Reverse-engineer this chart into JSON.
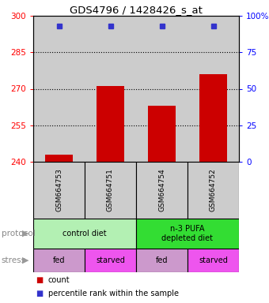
{
  "title": "GDS4796 / 1428426_s_at",
  "samples": [
    "GSM664753",
    "GSM664751",
    "GSM664754",
    "GSM664752"
  ],
  "bar_values": [
    243,
    271,
    263,
    276
  ],
  "percentile_values": [
    93,
    93,
    93,
    93
  ],
  "ylim_left": [
    240,
    300
  ],
  "ylim_right": [
    0,
    100
  ],
  "yticks_left": [
    240,
    255,
    270,
    285,
    300
  ],
  "yticks_right": [
    0,
    25,
    50,
    75,
    100
  ],
  "bar_color": "#cc0000",
  "dot_color": "#3333cc",
  "bar_width": 0.55,
  "protocol_labels": [
    [
      "control diet",
      0,
      2
    ],
    [
      "n-3 PUFA\ndepleted diet",
      2,
      4
    ]
  ],
  "protocol_colors": [
    "#b3f0b3",
    "#33dd33"
  ],
  "stress_labels": [
    "fed",
    "starved",
    "fed",
    "starved"
  ],
  "stress_colors": [
    "#ddaadd",
    "#ee66ee",
    "#ddaadd",
    "#ee66ee"
  ],
  "row_label_protocol": "protocol",
  "row_label_stress": "stress",
  "legend_count_color": "#cc0000",
  "legend_pct_color": "#3333cc",
  "legend_count_label": "count",
  "legend_pct_label": "percentile rank within the sample",
  "background_color": "#ffffff",
  "plot_bg_color": "#cccccc",
  "grid_dotted_at": [
    255,
    270,
    285
  ],
  "stress_fed_color": "#cc88cc",
  "stress_starved_color": "#ee44ee"
}
